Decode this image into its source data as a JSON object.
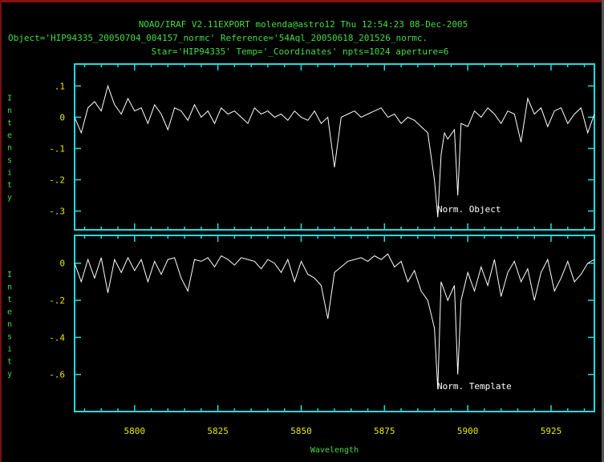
{
  "header": {
    "line1": "NOAO/IRAF V2.11EXPORT molenda@astro12 Thu 12:54:23 08-Dec-2005",
    "line2": "Object='HIP94335_20050704_004157_normc' Reference='54Aql_20050618_201526_normc.",
    "line3": "Star='HIP94335' Temp='_Coordinates' npts=1024 aperture=6"
  },
  "colors": {
    "frame": "#22dddd",
    "header_text": "#44dd44",
    "tick_labels": "#e8e800",
    "spectrum": "#ffffff",
    "background": "#000000"
  },
  "chart_data": [
    {
      "type": "line",
      "panel": "top",
      "ylabel": "Intensity",
      "xlim": [
        5782,
        5938
      ],
      "ylim": [
        -0.36,
        0.17
      ],
      "yticks": [
        0.1,
        0,
        -0.1,
        -0.2,
        -0.3
      ],
      "ytick_labels": [
        ".1",
        "0",
        "-.1",
        "-.2",
        "-.3"
      ],
      "series_label": "Norm. Object",
      "grid": false,
      "series": [
        {
          "name": "Norm. Object",
          "x": [
            5782,
            5784,
            5786,
            5788,
            5790,
            5792,
            5794,
            5796,
            5798,
            5800,
            5802,
            5804,
            5806,
            5808,
            5810,
            5812,
            5814,
            5816,
            5818,
            5820,
            5822,
            5824,
            5826,
            5828,
            5830,
            5832,
            5834,
            5836,
            5838,
            5840,
            5842,
            5844,
            5846,
            5848,
            5850,
            5852,
            5854,
            5856,
            5858,
            5860,
            5862,
            5864,
            5866,
            5868,
            5870,
            5872,
            5874,
            5876,
            5878,
            5880,
            5882,
            5884,
            5886,
            5888,
            5890,
            5891,
            5892,
            5893,
            5894,
            5896,
            5897,
            5898,
            5900,
            5902,
            5904,
            5906,
            5908,
            5910,
            5912,
            5914,
            5916,
            5918,
            5920,
            5922,
            5924,
            5926,
            5928,
            5930,
            5932,
            5934,
            5936,
            5938
          ],
          "y": [
            0.0,
            -0.05,
            0.03,
            0.05,
            0.02,
            0.1,
            0.04,
            0.01,
            0.06,
            0.02,
            0.03,
            -0.02,
            0.04,
            0.01,
            -0.04,
            0.03,
            0.02,
            -0.01,
            0.04,
            0.0,
            0.02,
            -0.02,
            0.03,
            0.01,
            0.02,
            0.0,
            -0.02,
            0.03,
            0.01,
            0.02,
            0.0,
            0.01,
            -0.01,
            0.02,
            0.0,
            -0.01,
            0.02,
            -0.02,
            0.0,
            -0.16,
            0.0,
            0.01,
            0.02,
            0.0,
            0.01,
            0.02,
            0.03,
            0.0,
            0.01,
            -0.02,
            0.0,
            -0.01,
            -0.03,
            -0.05,
            -0.2,
            -0.32,
            -0.12,
            -0.05,
            -0.07,
            -0.04,
            -0.25,
            -0.02,
            -0.03,
            0.02,
            0.0,
            0.03,
            0.01,
            -0.02,
            0.02,
            0.01,
            -0.08,
            0.06,
            0.01,
            0.03,
            -0.03,
            0.02,
            0.03,
            -0.02,
            0.01,
            0.03,
            -0.05,
            0.01
          ]
        }
      ]
    },
    {
      "type": "line",
      "panel": "bottom",
      "ylabel": "Intensity",
      "xlabel": "Wavelength",
      "xlim": [
        5782,
        5938
      ],
      "ylim": [
        -0.8,
        0.15
      ],
      "yticks": [
        0,
        -0.2,
        -0.4,
        -0.6
      ],
      "ytick_labels": [
        "0",
        "-.2",
        "-.4",
        "-.6"
      ],
      "xticks": [
        5800,
        5825,
        5850,
        5875,
        5900,
        5925
      ],
      "xtick_labels": [
        "5800",
        "5825",
        "5850",
        "5875",
        "5900",
        "5925"
      ],
      "series_label": "Norm. Template",
      "grid": false,
      "series": [
        {
          "name": "Norm. Template",
          "x": [
            5782,
            5784,
            5786,
            5788,
            5790,
            5792,
            5794,
            5796,
            5798,
            5800,
            5802,
            5804,
            5806,
            5808,
            5810,
            5812,
            5814,
            5816,
            5818,
            5820,
            5822,
            5824,
            5826,
            5828,
            5830,
            5832,
            5834,
            5836,
            5838,
            5840,
            5842,
            5844,
            5846,
            5848,
            5850,
            5852,
            5854,
            5856,
            5858,
            5860,
            5862,
            5864,
            5866,
            5868,
            5870,
            5872,
            5874,
            5876,
            5878,
            5880,
            5882,
            5884,
            5886,
            5888,
            5890,
            5891,
            5892,
            5893,
            5894,
            5896,
            5897,
            5898,
            5900,
            5902,
            5904,
            5906,
            5908,
            5910,
            5912,
            5914,
            5916,
            5918,
            5920,
            5922,
            5924,
            5926,
            5928,
            5930,
            5932,
            5934,
            5936,
            5938
          ],
          "y": [
            0.0,
            -0.1,
            0.02,
            -0.08,
            0.03,
            -0.16,
            0.02,
            -0.05,
            0.03,
            -0.04,
            0.02,
            -0.1,
            0.01,
            -0.06,
            0.02,
            0.03,
            -0.08,
            -0.15,
            0.02,
            0.01,
            0.03,
            -0.02,
            0.04,
            0.02,
            -0.01,
            0.03,
            0.02,
            0.01,
            -0.03,
            0.02,
            0.0,
            -0.05,
            0.02,
            -0.1,
            0.01,
            -0.06,
            -0.08,
            -0.12,
            -0.3,
            -0.05,
            -0.02,
            0.01,
            0.02,
            0.03,
            0.01,
            0.04,
            0.02,
            0.05,
            -0.02,
            0.01,
            -0.1,
            -0.04,
            -0.15,
            -0.2,
            -0.35,
            -0.68,
            -0.1,
            -0.15,
            -0.2,
            -0.12,
            -0.6,
            -0.2,
            -0.05,
            -0.15,
            -0.02,
            -0.12,
            0.02,
            -0.18,
            -0.05,
            0.01,
            -0.1,
            -0.03,
            -0.2,
            -0.05,
            0.02,
            -0.15,
            -0.08,
            0.01,
            -0.1,
            -0.06,
            0.0,
            0.02
          ]
        }
      ]
    }
  ]
}
